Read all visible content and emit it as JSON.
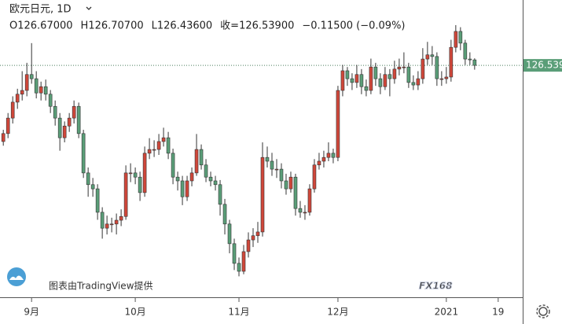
{
  "chart_data": {
    "type": "candlestick",
    "title": "欧元日元, 1D",
    "legend_items": [
      "O126.67000",
      "H126.70700",
      "L126.43600",
      "收=126.53900",
      "−0.11500 (−0.09%)"
    ],
    "up_color": "#d0473a",
    "down_color": "#5a9e78",
    "ylim": [
      121.0,
      128.1
    ],
    "xlim": [
      -0.7,
      110.2
    ],
    "xticks": [
      {
        "value": 6,
        "label": "9月"
      },
      {
        "value": 28,
        "label": "10月"
      },
      {
        "value": 50,
        "label": "11月"
      },
      {
        "value": 71,
        "label": "12月"
      },
      {
        "value": 94,
        "label": "2021"
      },
      {
        "value": 105,
        "label": "19"
      }
    ],
    "last_price": {
      "value": 126.539,
      "label": "126.539"
    },
    "credit": "图表由TradingView提供",
    "logo": "FX168",
    "ohlc": [
      [
        124.72,
        125.0,
        124.62,
        124.91
      ],
      [
        124.91,
        125.4,
        124.8,
        125.28
      ],
      [
        125.28,
        125.8,
        125.15,
        125.66
      ],
      [
        125.66,
        125.98,
        125.5,
        125.85
      ],
      [
        125.85,
        126.4,
        125.7,
        125.94
      ],
      [
        125.94,
        126.6,
        125.8,
        126.32
      ],
      [
        126.32,
        127.07,
        126.1,
        126.22
      ],
      [
        126.22,
        126.4,
        125.75,
        125.88
      ],
      [
        125.88,
        126.15,
        125.7,
        126.03
      ],
      [
        126.03,
        126.2,
        125.7,
        125.85
      ],
      [
        125.85,
        125.95,
        125.4,
        125.56
      ],
      [
        125.56,
        125.7,
        125.1,
        125.28
      ],
      [
        125.28,
        125.4,
        124.5,
        124.81
      ],
      [
        124.81,
        125.2,
        124.7,
        125.09
      ],
      [
        125.09,
        125.4,
        124.95,
        125.28
      ],
      [
        125.28,
        125.7,
        125.15,
        125.56
      ],
      [
        125.56,
        125.65,
        124.8,
        124.91
      ],
      [
        124.91,
        125.0,
        123.85,
        123.97
      ],
      [
        123.97,
        124.1,
        123.4,
        123.69
      ],
      [
        123.69,
        123.85,
        123.4,
        123.59
      ],
      [
        123.59,
        123.7,
        122.85,
        123.03
      ],
      [
        123.03,
        123.15,
        122.4,
        122.65
      ],
      [
        122.65,
        122.95,
        122.5,
        122.75
      ],
      [
        122.75,
        122.9,
        122.55,
        122.75
      ],
      [
        122.75,
        123.0,
        122.5,
        122.84
      ],
      [
        122.84,
        123.1,
        122.7,
        122.93
      ],
      [
        122.93,
        124.15,
        122.85,
        123.97
      ],
      [
        123.97,
        124.2,
        123.75,
        123.97
      ],
      [
        123.97,
        124.1,
        123.7,
        123.87
      ],
      [
        123.87,
        124.0,
        123.3,
        123.5
      ],
      [
        123.5,
        124.6,
        123.4,
        124.44
      ],
      [
        124.44,
        124.8,
        124.3,
        124.53
      ],
      [
        124.53,
        124.75,
        124.35,
        124.53
      ],
      [
        124.53,
        124.9,
        124.4,
        124.72
      ],
      [
        124.72,
        125.05,
        124.6,
        124.81
      ],
      [
        124.81,
        124.95,
        124.3,
        124.44
      ],
      [
        124.44,
        124.55,
        123.7,
        123.87
      ],
      [
        123.87,
        124.0,
        123.55,
        123.78
      ],
      [
        123.78,
        123.9,
        123.2,
        123.4
      ],
      [
        123.4,
        123.9,
        123.3,
        123.78
      ],
      [
        123.78,
        124.1,
        123.65,
        123.97
      ],
      [
        123.97,
        124.9,
        123.9,
        124.53
      ],
      [
        124.53,
        124.65,
        124.05,
        124.16
      ],
      [
        124.16,
        124.3,
        123.75,
        123.87
      ],
      [
        123.87,
        124.0,
        123.65,
        123.78
      ],
      [
        123.78,
        123.9,
        123.55,
        123.69
      ],
      [
        123.69,
        123.8,
        122.95,
        123.22
      ],
      [
        123.22,
        123.35,
        122.5,
        122.75
      ],
      [
        122.75,
        122.85,
        122.05,
        122.28
      ],
      [
        122.28,
        122.4,
        121.65,
        121.81
      ],
      [
        121.81,
        121.95,
        121.5,
        121.62
      ],
      [
        121.62,
        122.25,
        121.55,
        122.09
      ],
      [
        122.09,
        122.55,
        121.95,
        122.37
      ],
      [
        122.37,
        122.65,
        122.2,
        122.47
      ],
      [
        122.47,
        122.8,
        122.3,
        122.56
      ],
      [
        122.56,
        124.7,
        122.45,
        124.34
      ],
      [
        124.34,
        124.6,
        124.1,
        124.25
      ],
      [
        124.25,
        124.45,
        123.9,
        124.06
      ],
      [
        124.06,
        124.3,
        123.85,
        124.06
      ],
      [
        124.06,
        124.2,
        123.6,
        123.78
      ],
      [
        123.78,
        123.95,
        123.45,
        123.59
      ],
      [
        123.59,
        124.0,
        123.5,
        123.87
      ],
      [
        123.87,
        123.95,
        122.95,
        123.12
      ],
      [
        123.12,
        123.3,
        122.9,
        123.03
      ],
      [
        123.03,
        123.2,
        122.85,
        123.03
      ],
      [
        123.03,
        123.7,
        122.95,
        123.59
      ],
      [
        123.59,
        124.3,
        123.5,
        124.16
      ],
      [
        124.16,
        124.45,
        124.05,
        124.25
      ],
      [
        124.25,
        124.5,
        124.1,
        124.34
      ],
      [
        124.34,
        124.7,
        124.25,
        124.44
      ],
      [
        124.44,
        124.55,
        124.2,
        124.34
      ],
      [
        124.34,
        126.05,
        124.25,
        125.94
      ],
      [
        125.94,
        126.55,
        125.8,
        126.41
      ],
      [
        126.41,
        126.5,
        126.05,
        126.22
      ],
      [
        126.22,
        126.35,
        125.95,
        126.13
      ],
      [
        126.13,
        126.55,
        126.0,
        126.32
      ],
      [
        126.32,
        126.45,
        125.85,
        126.03
      ],
      [
        126.03,
        126.2,
        125.8,
        125.94
      ],
      [
        125.94,
        126.7,
        125.85,
        126.5
      ],
      [
        126.5,
        126.6,
        126.05,
        126.22
      ],
      [
        126.22,
        126.35,
        125.85,
        126.03
      ],
      [
        126.03,
        126.5,
        125.95,
        126.32
      ],
      [
        126.32,
        126.45,
        125.8,
        126.22
      ],
      [
        126.22,
        126.65,
        126.1,
        126.45
      ],
      [
        126.45,
        126.7,
        126.3,
        126.5
      ],
      [
        126.5,
        126.85,
        126.35,
        126.5
      ],
      [
        126.5,
        126.6,
        126.0,
        126.13
      ],
      [
        126.13,
        126.3,
        125.95,
        126.07
      ],
      [
        126.07,
        126.4,
        125.95,
        126.22
      ],
      [
        126.22,
        126.95,
        126.1,
        126.69
      ],
      [
        126.69,
        127.1,
        126.55,
        126.79
      ],
      [
        126.79,
        127.0,
        126.55,
        126.75
      ],
      [
        126.75,
        126.85,
        126.05,
        126.22
      ],
      [
        126.22,
        126.4,
        126.05,
        126.22
      ],
      [
        126.22,
        126.5,
        126.1,
        126.26
      ],
      [
        126.26,
        127.15,
        126.15,
        126.97
      ],
      [
        126.97,
        127.5,
        126.85,
        127.35
      ],
      [
        127.35,
        127.45,
        126.9,
        127.07
      ],
      [
        127.07,
        127.15,
        126.55,
        126.69
      ],
      [
        126.69,
        126.85,
        126.55,
        126.67
      ],
      [
        126.67,
        126.707,
        126.436,
        126.539
      ]
    ]
  }
}
